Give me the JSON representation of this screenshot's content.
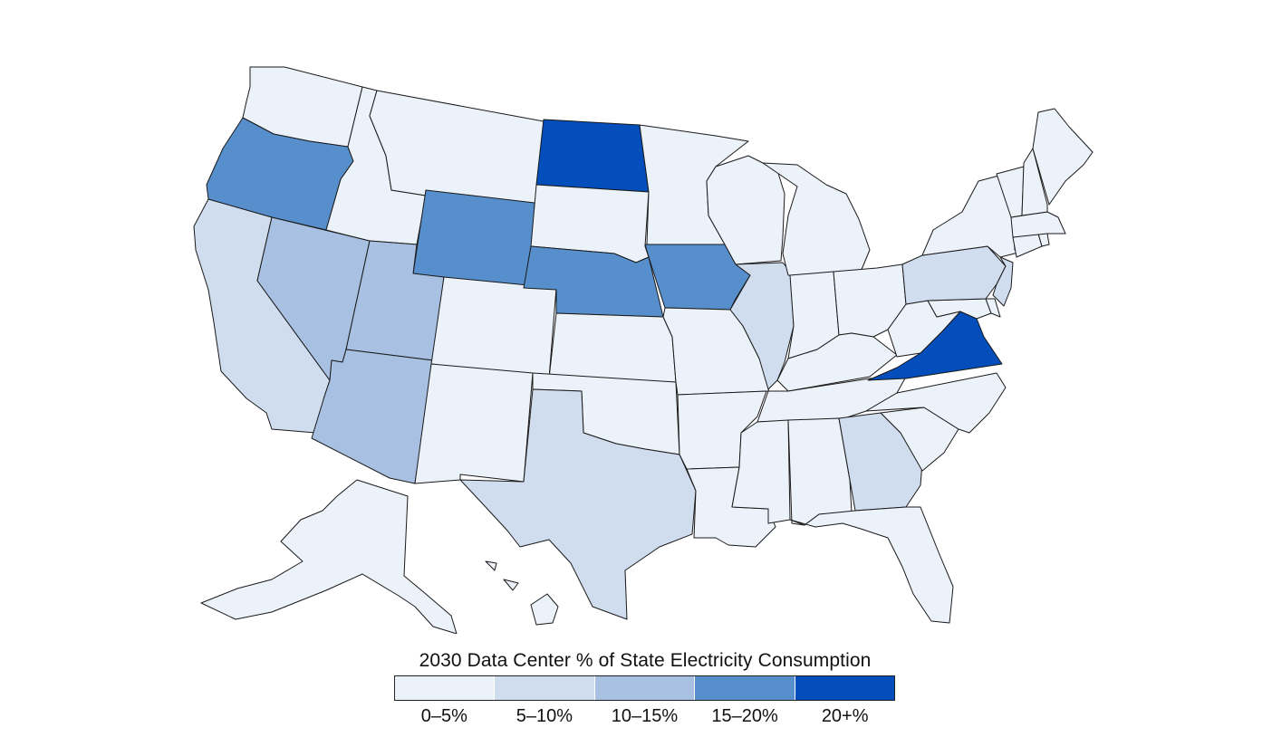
{
  "legend": {
    "title": "2030 Data Center % of State Electricity Consumption",
    "bins": [
      {
        "label": "0–5%",
        "color": "#ecf2f9"
      },
      {
        "label": "5–10%",
        "color": "#d0ddee"
      },
      {
        "label": "10–15%",
        "color": "#a8c1e3"
      },
      {
        "label": "15–20%",
        "color": "#578fcd"
      },
      {
        "label": "20+%",
        "color": "#034ebb"
      }
    ]
  },
  "states": [
    {
      "name": "Washington",
      "bin": 0
    },
    {
      "name": "Oregon",
      "bin": 3
    },
    {
      "name": "California",
      "bin": 1
    },
    {
      "name": "Nevada",
      "bin": 2
    },
    {
      "name": "Idaho",
      "bin": 0
    },
    {
      "name": "Montana",
      "bin": 0
    },
    {
      "name": "Wyoming",
      "bin": 3
    },
    {
      "name": "Utah",
      "bin": 2
    },
    {
      "name": "Arizona",
      "bin": 2
    },
    {
      "name": "Colorado",
      "bin": 0
    },
    {
      "name": "New Mexico",
      "bin": 0
    },
    {
      "name": "North Dakota",
      "bin": 4
    },
    {
      "name": "South Dakota",
      "bin": 0
    },
    {
      "name": "Nebraska",
      "bin": 3
    },
    {
      "name": "Kansas",
      "bin": 0
    },
    {
      "name": "Oklahoma",
      "bin": 0
    },
    {
      "name": "Texas",
      "bin": 1
    },
    {
      "name": "Minnesota",
      "bin": 0
    },
    {
      "name": "Iowa",
      "bin": 3
    },
    {
      "name": "Missouri",
      "bin": 0
    },
    {
      "name": "Arkansas",
      "bin": 0
    },
    {
      "name": "Louisiana",
      "bin": 0
    },
    {
      "name": "Wisconsin",
      "bin": 0
    },
    {
      "name": "Illinois",
      "bin": 1
    },
    {
      "name": "Michigan",
      "bin": 0
    },
    {
      "name": "Indiana",
      "bin": 0
    },
    {
      "name": "Ohio",
      "bin": 0
    },
    {
      "name": "Kentucky",
      "bin": 0
    },
    {
      "name": "Tennessee",
      "bin": 0
    },
    {
      "name": "Mississippi",
      "bin": 0
    },
    {
      "name": "Alabama",
      "bin": 0
    },
    {
      "name": "Georgia",
      "bin": 1
    },
    {
      "name": "Florida",
      "bin": 0
    },
    {
      "name": "South Carolina",
      "bin": 0
    },
    {
      "name": "North Carolina",
      "bin": 0
    },
    {
      "name": "Virginia",
      "bin": 4
    },
    {
      "name": "West Virginia",
      "bin": 0
    },
    {
      "name": "Maryland",
      "bin": 0
    },
    {
      "name": "Delaware",
      "bin": 0
    },
    {
      "name": "Pennsylvania",
      "bin": 1
    },
    {
      "name": "New Jersey",
      "bin": 1
    },
    {
      "name": "New York",
      "bin": 0
    },
    {
      "name": "Connecticut",
      "bin": 0
    },
    {
      "name": "Rhode Island",
      "bin": 0
    },
    {
      "name": "Massachusetts",
      "bin": 0
    },
    {
      "name": "Vermont",
      "bin": 0
    },
    {
      "name": "New Hampshire",
      "bin": 0
    },
    {
      "name": "Maine",
      "bin": 0
    },
    {
      "name": "Alaska",
      "bin": 0
    },
    {
      "name": "Hawaii",
      "bin": 0
    }
  ]
}
